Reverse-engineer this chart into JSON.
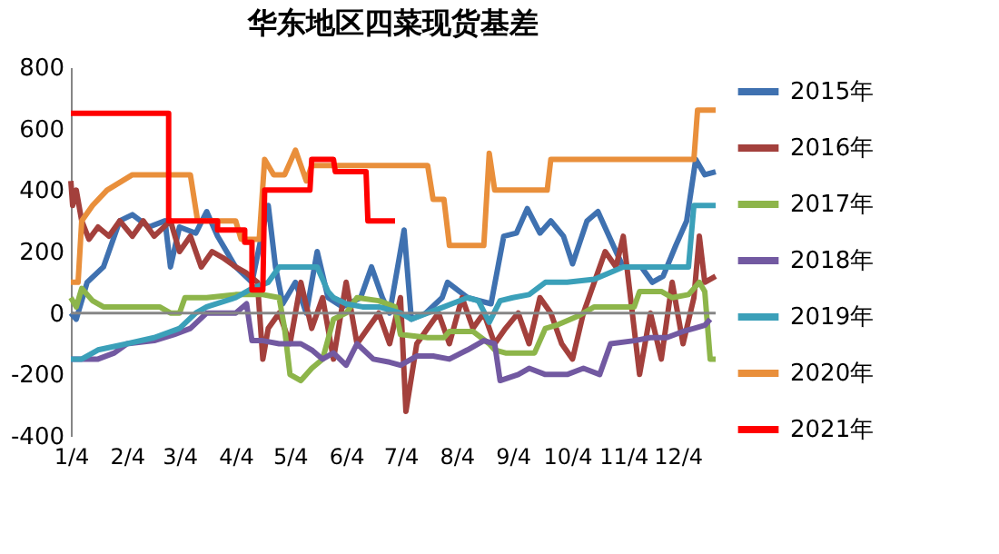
{
  "chart_data": {
    "type": "line",
    "title": "华东地区四菜现货基差",
    "xlim": [
      "--01-04",
      "--12-25"
    ],
    "xticks": [
      {
        "value": "--01-04",
        "label": "1/4"
      },
      {
        "value": "--02-04",
        "label": "2/4"
      },
      {
        "value": "--03-04",
        "label": "3/4"
      },
      {
        "value": "--04-04",
        "label": "4/4"
      },
      {
        "value": "--05-04",
        "label": "5/4"
      },
      {
        "value": "--06-04",
        "label": "6/4"
      },
      {
        "value": "--07-04",
        "label": "7/4"
      },
      {
        "value": "--08-04",
        "label": "8/4"
      },
      {
        "value": "--09-04",
        "label": "9/4"
      },
      {
        "value": "--10-04",
        "label": "10/4"
      },
      {
        "value": "--11-04",
        "label": "11/4"
      },
      {
        "value": "--12-04",
        "label": "12/4"
      }
    ],
    "ylim": [
      -400,
      800
    ],
    "yticks": [
      -400,
      -200,
      0,
      200,
      400,
      600,
      800
    ],
    "grid": false,
    "legend": "right",
    "marker": "none",
    "line_style": "solid",
    "ref_lines": [
      {
        "axis": "y",
        "value": 0,
        "color": "#868686"
      }
    ],
    "series": [
      {
        "name": "2015年",
        "color": "#3f71b0",
        "x": [
          "--01-04",
          "--01-07",
          "--01-13",
          "--01-22",
          "--01-31",
          "--02-07",
          "--02-16",
          "--02-25",
          "--02-28",
          "--03-04",
          "--03-13",
          "--03-19",
          "--03-25",
          "--04-04",
          "--04-13",
          "--04-20",
          "--04-22",
          "--04-26",
          "--04-30",
          "--05-07",
          "--05-13",
          "--05-19",
          "--05-25",
          "--06-02",
          "--06-12",
          "--06-18",
          "--06-24",
          "--06-28",
          "--07-06",
          "--07-10",
          "--07-18",
          "--07-27",
          "--07-30",
          "--08-10",
          "--08-23",
          "--08-30",
          "--09-06",
          "--09-12",
          "--09-19",
          "--09-25",
          "--10-02",
          "--10-07",
          "--10-15",
          "--10-21",
          "--10-31",
          "--11-04",
          "--11-14",
          "--11-20",
          "--11-26",
          "--12-03",
          "--12-09",
          "--12-14",
          "--12-19",
          "--12-25"
        ],
        "values": [
          0,
          -20,
          100,
          150,
          300,
          320,
          280,
          300,
          150,
          280,
          260,
          330,
          250,
          150,
          100,
          300,
          350,
          150,
          30,
          100,
          0,
          200,
          50,
          20,
          50,
          150,
          50,
          0,
          270,
          -20,
          0,
          50,
          100,
          50,
          30,
          250,
          260,
          340,
          260,
          300,
          250,
          160,
          300,
          330,
          200,
          150,
          150,
          100,
          120,
          220,
          300,
          500,
          450,
          460
        ]
      },
      {
        "name": "2016年",
        "color": "#a3403c",
        "x": [
          "--01-04",
          "--01-05",
          "--01-07",
          "--01-10",
          "--01-14",
          "--01-19",
          "--01-25",
          "--01-31",
          "--02-07",
          "--02-13",
          "--02-19",
          "--02-28",
          "--03-04",
          "--03-10",
          "--03-16",
          "--03-22",
          "--03-28",
          "--04-04",
          "--04-10",
          "--04-16",
          "--04-19",
          "--04-22",
          "--04-28",
          "--05-04",
          "--05-10",
          "--05-16",
          "--05-22",
          "--05-28",
          "--06-04",
          "--06-10",
          "--06-16",
          "--06-22",
          "--06-28",
          "--07-04",
          "--07-07",
          "--07-13",
          "--07-19",
          "--07-25",
          "--07-31",
          "--08-07",
          "--08-13",
          "--08-19",
          "--08-25",
          "--08-31",
          "--09-07",
          "--09-13",
          "--09-19",
          "--09-25",
          "--10-01",
          "--10-07",
          "--10-13",
          "--10-19",
          "--10-25",
          "--10-31",
          "--11-04",
          "--11-07",
          "--11-13",
          "--11-19",
          "--11-25",
          "--12-01",
          "--12-07",
          "--12-13",
          "--12-16",
          "--12-19",
          "--12-25"
        ],
        "values": [
          430,
          350,
          400,
          300,
          240,
          280,
          250,
          300,
          250,
          300,
          250,
          300,
          200,
          250,
          150,
          200,
          180,
          150,
          130,
          100,
          -150,
          -50,
          0,
          -100,
          100,
          -50,
          50,
          -150,
          100,
          -100,
          -50,
          0,
          -100,
          50,
          -320,
          -100,
          -50,
          0,
          -100,
          50,
          -50,
          0,
          -100,
          -50,
          0,
          -100,
          50,
          0,
          -100,
          -150,
          0,
          100,
          200,
          150,
          250,
          100,
          -200,
          0,
          -150,
          100,
          -100,
          50,
          250,
          100,
          120
        ]
      },
      {
        "name": "2017年",
        "color": "#8db54a",
        "x": [
          "--01-04",
          "--01-07",
          "--01-10",
          "--01-16",
          "--01-22",
          "--02-04",
          "--02-22",
          "--02-28",
          "--03-04",
          "--03-07",
          "--03-19",
          "--04-04",
          "--04-19",
          "--04-28",
          "--05-01",
          "--05-04",
          "--05-10",
          "--05-16",
          "--05-22",
          "--05-28",
          "--06-04",
          "--06-10",
          "--06-22",
          "--07-01",
          "--07-04",
          "--07-19",
          "--07-28",
          "--07-31",
          "--08-13",
          "--08-22",
          "--08-25",
          "--08-31",
          "--09-16",
          "--09-22",
          "--09-28",
          "--10-10",
          "--10-19",
          "--10-25",
          "--11-04",
          "--11-10",
          "--11-13",
          "--11-25",
          "--12-01",
          "--12-10",
          "--12-16",
          "--12-19",
          "--12-22",
          "--12-25"
        ],
        "values": [
          50,
          20,
          80,
          40,
          20,
          20,
          20,
          0,
          0,
          50,
          50,
          60,
          60,
          50,
          -50,
          -200,
          -220,
          -180,
          -150,
          -20,
          0,
          50,
          40,
          20,
          -70,
          -80,
          -80,
          -60,
          -60,
          -100,
          -120,
          -130,
          -130,
          -50,
          -40,
          -10,
          20,
          20,
          20,
          20,
          70,
          70,
          50,
          60,
          100,
          70,
          -150,
          -150
        ]
      },
      {
        "name": "2018年",
        "color": "#7259a1",
        "x": [
          "--01-04",
          "--01-19",
          "--01-28",
          "--02-04",
          "--02-19",
          "--03-01",
          "--03-10",
          "--03-19",
          "--03-28",
          "--04-04",
          "--04-10",
          "--04-13",
          "--04-19",
          "--04-28",
          "--05-04",
          "--05-10",
          "--05-16",
          "--05-22",
          "--05-28",
          "--06-04",
          "--06-10",
          "--06-19",
          "--06-28",
          "--07-04",
          "--07-13",
          "--07-22",
          "--07-31",
          "--08-10",
          "--08-19",
          "--08-25",
          "--08-28",
          "--09-07",
          "--09-13",
          "--09-22",
          "--10-04",
          "--10-13",
          "--10-22",
          "--10-28",
          "--11-10",
          "--11-19",
          "--11-28",
          "--12-07",
          "--12-13",
          "--12-19",
          "--12-22"
        ],
        "values": [
          -150,
          -150,
          -130,
          -100,
          -90,
          -70,
          -50,
          0,
          0,
          0,
          30,
          -90,
          -90,
          -100,
          -100,
          -100,
          -120,
          -150,
          -130,
          -170,
          -100,
          -150,
          -160,
          -170,
          -140,
          -140,
          -150,
          -120,
          -90,
          -100,
          -220,
          -200,
          -180,
          -200,
          -200,
          -180,
          -200,
          -100,
          -90,
          -80,
          -80,
          -60,
          -50,
          -40,
          -20
        ]
      },
      {
        "name": "2019年",
        "color": "#3ba0b9",
        "x": [
          "--01-04",
          "--01-10",
          "--01-19",
          "--02-04",
          "--02-19",
          "--03-04",
          "--03-13",
          "--03-19",
          "--04-04",
          "--04-13",
          "--04-22",
          "--04-28",
          "--05-04",
          "--05-19",
          "--05-25",
          "--05-28",
          "--06-04",
          "--06-13",
          "--06-22",
          "--07-04",
          "--07-10",
          "--07-19",
          "--07-28",
          "--08-10",
          "--08-16",
          "--08-22",
          "--08-28",
          "--09-04",
          "--09-13",
          "--09-22",
          "--10-04",
          "--10-19",
          "--11-04",
          "--11-19",
          "--12-10",
          "--12-13",
          "--12-25"
        ],
        "values": [
          -150,
          -150,
          -120,
          -100,
          -80,
          -50,
          0,
          20,
          50,
          80,
          100,
          150,
          150,
          150,
          70,
          50,
          30,
          20,
          20,
          0,
          -20,
          0,
          20,
          50,
          40,
          -30,
          40,
          50,
          60,
          100,
          100,
          110,
          150,
          150,
          150,
          350,
          350
        ]
      },
      {
        "name": "2020年",
        "color": "#e98f3b",
        "x": [
          "--01-04",
          "--01-08",
          "--01-10",
          "--01-16",
          "--01-24",
          "--02-07",
          "--03-10",
          "--03-14",
          "--03-19",
          "--04-04",
          "--04-07",
          "--04-17",
          "--04-20",
          "--04-25",
          "--05-01",
          "--05-07",
          "--05-13",
          "--05-16",
          "--07-19",
          "--07-22",
          "--07-28",
          "--07-31",
          "--08-04",
          "--08-19",
          "--08-22",
          "--08-25",
          "--09-23",
          "--09-25",
          "--12-13",
          "--12-15",
          "--12-25"
        ],
        "values": [
          100,
          100,
          300,
          350,
          400,
          450,
          450,
          300,
          300,
          300,
          240,
          240,
          500,
          450,
          450,
          530,
          430,
          480,
          480,
          370,
          370,
          220,
          220,
          220,
          520,
          400,
          400,
          500,
          500,
          660,
          660
        ]
      },
      {
        "name": "2021年",
        "color": "#ff0000",
        "x": [
          "--01-04",
          "--02-27",
          "--02-27",
          "--03-25",
          "--03-25",
          "--04-09",
          "--04-09",
          "--04-13",
          "--04-13",
          "--04-19",
          "--04-20",
          "--05-15",
          "--05-16",
          "--05-28",
          "--05-29",
          "--06-15",
          "--06-16",
          "--07-01"
        ],
        "values": [
          650,
          650,
          300,
          300,
          270,
          270,
          230,
          230,
          75,
          75,
          400,
          400,
          500,
          500,
          460,
          460,
          300,
          300
        ]
      }
    ]
  }
}
